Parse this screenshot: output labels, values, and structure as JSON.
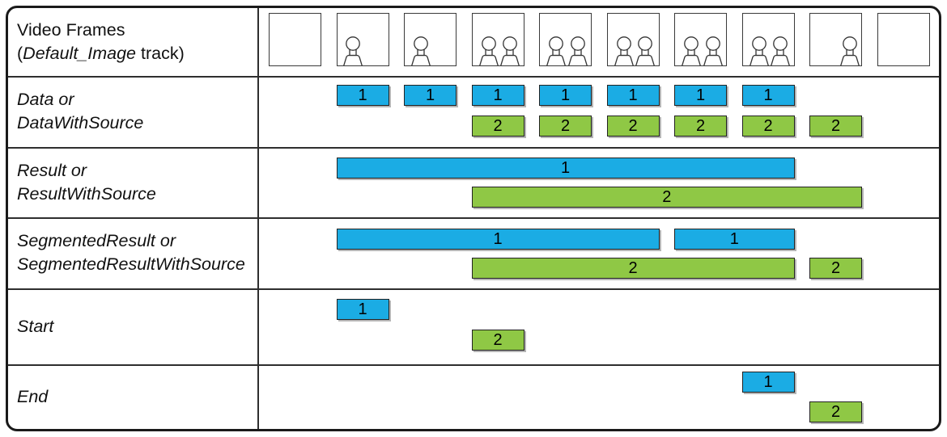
{
  "colors": {
    "blue": "#1BACE4",
    "green": "#8FC845"
  },
  "labels": {
    "video": {
      "line1": "Video Frames",
      "line2_pre": "(",
      "line2_italic": "Default_Image",
      "line2_post": " track)"
    },
    "data": {
      "line1": "Data or",
      "line2": "DataWithSource"
    },
    "result": {
      "line1": "Result or",
      "line2": "ResultWithSource"
    },
    "segmented": {
      "line1": "SegmentedResult or",
      "line2": "SegmentedResultWithSource"
    },
    "start": {
      "line1": "Start"
    },
    "end": {
      "line1": "End"
    }
  },
  "frames": [
    {
      "persons": []
    },
    {
      "persons": [
        0.3
      ]
    },
    {
      "persons": [
        0.3
      ]
    },
    {
      "persons": [
        0.31,
        0.72
      ]
    },
    {
      "persons": [
        0.31,
        0.72
      ]
    },
    {
      "persons": [
        0.31,
        0.72
      ]
    },
    {
      "persons": [
        0.31,
        0.72
      ]
    },
    {
      "persons": [
        0.31,
        0.72
      ]
    },
    {
      "persons": [
        0.75
      ]
    },
    {
      "persons": []
    }
  ],
  "bars": [
    {
      "track": "data",
      "color": "blue",
      "label": "1",
      "start": 2,
      "end": 2,
      "line": 1
    },
    {
      "track": "data",
      "color": "blue",
      "label": "1",
      "start": 3,
      "end": 3,
      "line": 1
    },
    {
      "track": "data",
      "color": "blue",
      "label": "1",
      "start": 4,
      "end": 4,
      "line": 1
    },
    {
      "track": "data",
      "color": "blue",
      "label": "1",
      "start": 5,
      "end": 5,
      "line": 1
    },
    {
      "track": "data",
      "color": "blue",
      "label": "1",
      "start": 6,
      "end": 6,
      "line": 1
    },
    {
      "track": "data",
      "color": "blue",
      "label": "1",
      "start": 7,
      "end": 7,
      "line": 1
    },
    {
      "track": "data",
      "color": "blue",
      "label": "1",
      "start": 8,
      "end": 8,
      "line": 1
    },
    {
      "track": "data",
      "color": "green",
      "label": "2",
      "start": 4,
      "end": 4,
      "line": 2
    },
    {
      "track": "data",
      "color": "green",
      "label": "2",
      "start": 5,
      "end": 5,
      "line": 2
    },
    {
      "track": "data",
      "color": "green",
      "label": "2",
      "start": 6,
      "end": 6,
      "line": 2
    },
    {
      "track": "data",
      "color": "green",
      "label": "2",
      "start": 7,
      "end": 7,
      "line": 2
    },
    {
      "track": "data",
      "color": "green",
      "label": "2",
      "start": 8,
      "end": 8,
      "line": 2
    },
    {
      "track": "data",
      "color": "green",
      "label": "2",
      "start": 9,
      "end": 9,
      "line": 2
    },
    {
      "track": "result",
      "color": "blue",
      "label": "1",
      "start": 2,
      "end": 8,
      "line": 1
    },
    {
      "track": "result",
      "color": "green",
      "label": "2",
      "start": 4,
      "end": 9,
      "line": 2
    },
    {
      "track": "segmented",
      "color": "blue",
      "label": "1",
      "start": 2,
      "end": 6,
      "line": 1
    },
    {
      "track": "segmented",
      "color": "blue",
      "label": "1",
      "start": 7,
      "end": 8,
      "line": 1
    },
    {
      "track": "segmented",
      "color": "green",
      "label": "2",
      "start": 4,
      "end": 8,
      "line": 2
    },
    {
      "track": "segmented",
      "color": "green",
      "label": "2",
      "start": 9,
      "end": 9,
      "line": 2
    },
    {
      "track": "start",
      "color": "blue",
      "label": "1",
      "start": 2,
      "end": 2,
      "line": 1
    },
    {
      "track": "start",
      "color": "green",
      "label": "2",
      "start": 4,
      "end": 4,
      "line": 2
    },
    {
      "track": "end",
      "color": "blue",
      "label": "1",
      "start": 8,
      "end": 8,
      "line": 1
    },
    {
      "track": "end",
      "color": "green",
      "label": "2",
      "start": 9,
      "end": 9,
      "line": 2
    }
  ]
}
